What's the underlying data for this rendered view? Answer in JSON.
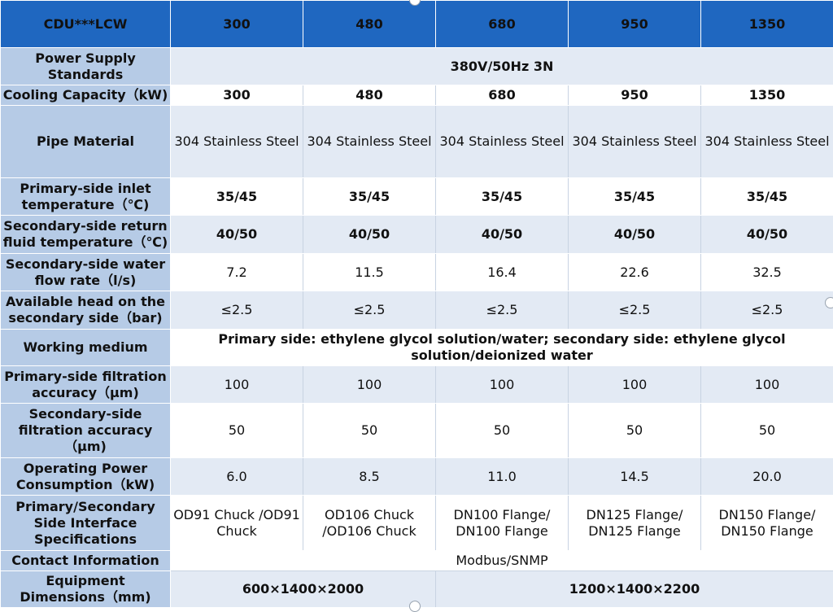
{
  "header": {
    "model": "CDU***LCW",
    "columns": [
      "300",
      "480",
      "680",
      "950",
      "1350"
    ]
  },
  "rows": {
    "power": {
      "label": "Power Supply Standards",
      "value": "380V/50Hz 3N"
    },
    "cooling": {
      "label": "Cooling Capacity（kW)",
      "values": [
        "300",
        "480",
        "680",
        "950",
        "1350"
      ]
    },
    "pipe": {
      "label": "Pipe Material",
      "values": [
        "304 Stainless Steel",
        "304 Stainless Steel",
        "304 Stainless Steel",
        "304 Stainless Steel",
        "304 Stainless Steel"
      ]
    },
    "primary_inlet": {
      "label": "Primary-side inlet temperature（℃)",
      "values": [
        "35/45",
        "35/45",
        "35/45",
        "35/45",
        "35/45"
      ]
    },
    "secondary_return": {
      "label": "Secondary-side return fluid temperature（℃)",
      "values": [
        "40/50",
        "40/50",
        "40/50",
        "40/50",
        "40/50"
      ]
    },
    "flow_rate": {
      "label": "Secondary-side water flow rate（l/s)",
      "values": [
        "7.2",
        "11.5",
        "16.4",
        "22.6",
        "32.5"
      ]
    },
    "head": {
      "label": "Available head on the secondary side（bar)",
      "values": [
        "≤2.5",
        "≤2.5",
        "≤2.5",
        "≤2.5",
        "≤2.5"
      ]
    },
    "medium": {
      "label": "Working medium",
      "value": "Primary side: ethylene glycol solution/water; secondary side: ethylene glycol solution/deionized water"
    },
    "primary_filtration": {
      "label": "Primary-side filtration accuracy（μm)",
      "values": [
        "100",
        "100",
        "100",
        "100",
        "100"
      ]
    },
    "secondary_filtration": {
      "label": "Secondary-side filtration accuracy（μm)",
      "values": [
        "50",
        "50",
        "50",
        "50",
        "50"
      ]
    },
    "power_consumption": {
      "label": "Operating Power Consumption（kW)",
      "values": [
        "6.0",
        "8.5",
        "11.0",
        "14.5",
        "20.0"
      ]
    },
    "interface": {
      "label": "Primary/Secondary Side Interface Specifications",
      "values": [
        "OD91 Chuck /OD91 Chuck",
        "OD106 Chuck /OD106 Chuck",
        "DN100 Flange/ DN100 Flange",
        "DN125 Flange/ DN125 Flange",
        "DN150 Flange/ DN150 Flange"
      ]
    },
    "contact": {
      "label": "Contact Information",
      "value": "Modbus/SNMP"
    },
    "dimensions": {
      "label": "Equipment Dimensions（mm)",
      "values": [
        "600×1400×2000",
        "1200×1400×2200"
      ]
    }
  }
}
